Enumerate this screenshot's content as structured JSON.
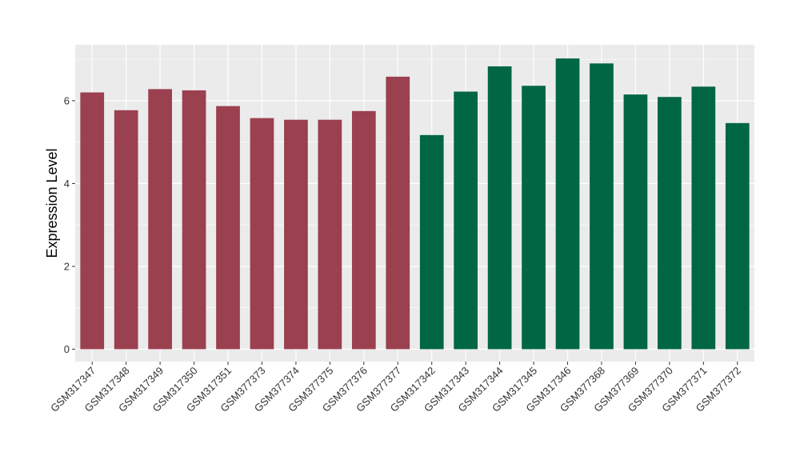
{
  "chart_data": {
    "type": "bar",
    "title": "",
    "xlabel": "",
    "ylabel": "Expression Level",
    "ylim": [
      -0.3,
      7.35
    ],
    "yticks": [
      0,
      2,
      4,
      6
    ],
    "grid": true,
    "legend": "none",
    "categories": [
      "GSM317347",
      "GSM317348",
      "GSM317349",
      "GSM317350",
      "GSM317351",
      "GSM377373",
      "GSM377374",
      "GSM377375",
      "GSM377376",
      "GSM377377",
      "GSM317342",
      "GSM317343",
      "GSM317344",
      "GSM317345",
      "GSM317346",
      "GSM377368",
      "GSM377369",
      "GSM377370",
      "GSM377371",
      "GSM377372"
    ],
    "values": [
      6.2,
      5.77,
      6.28,
      6.25,
      5.87,
      5.58,
      5.54,
      5.54,
      5.75,
      6.58,
      5.17,
      6.22,
      6.83,
      6.36,
      7.02,
      6.9,
      6.15,
      6.09,
      6.34,
      5.46
    ],
    "group_index": [
      0,
      0,
      0,
      0,
      0,
      0,
      0,
      0,
      0,
      0,
      1,
      1,
      1,
      1,
      1,
      1,
      1,
      1,
      1,
      1
    ],
    "colors": {
      "group_colors": [
        "#9b404f",
        "#016644"
      ],
      "panel_background": "#ebebeb",
      "grid_line": "#ffffff"
    }
  }
}
